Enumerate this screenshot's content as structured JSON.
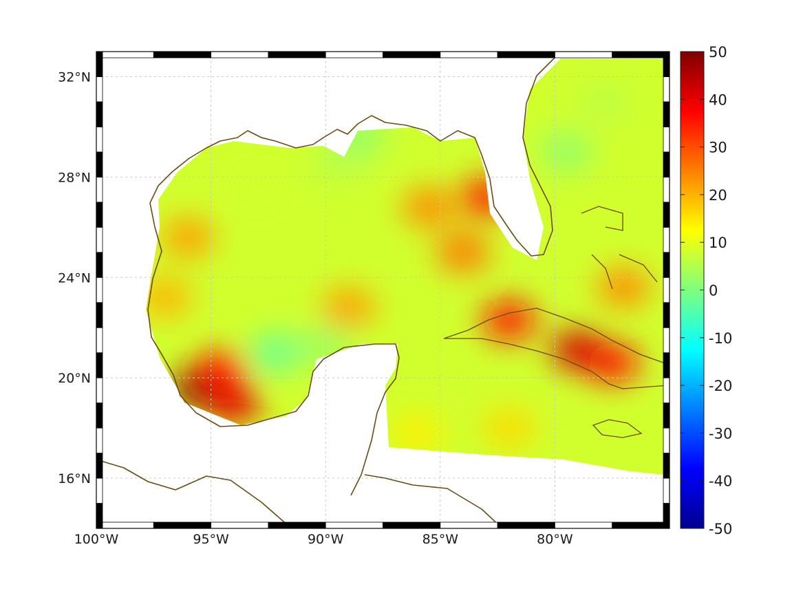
{
  "map": {
    "type": "heatmap",
    "projection": "lat-lon",
    "lon_range": [
      -100,
      -75
    ],
    "lat_range": [
      14,
      33
    ],
    "x_ticks": [
      {
        "value": -100,
        "label": "100°W"
      },
      {
        "value": -95,
        "label": "95°W"
      },
      {
        "value": -90,
        "label": "90°W"
      },
      {
        "value": -85,
        "label": "85°W"
      },
      {
        "value": -80,
        "label": "80°W"
      }
    ],
    "y_ticks": [
      {
        "value": 16,
        "label": "16°N"
      },
      {
        "value": 20,
        "label": "20°N"
      },
      {
        "value": 24,
        "label": "24°N"
      },
      {
        "value": 28,
        "label": "28°N"
      },
      {
        "value": 32,
        "label": "32°N"
      }
    ],
    "grid": true,
    "coastline_color": "#6b4a10",
    "frame_style": "alternating black/white border bars"
  },
  "colorbar": {
    "colormap": "jet",
    "range": [
      -50,
      50
    ],
    "placement": "right",
    "ticks": [
      {
        "value": 50,
        "label": "50"
      },
      {
        "value": 40,
        "label": "40"
      },
      {
        "value": 30,
        "label": "30"
      },
      {
        "value": 20,
        "label": "20"
      },
      {
        "value": 10,
        "label": "10"
      },
      {
        "value": 0,
        "label": "0"
      },
      {
        "value": -10,
        "label": "-10"
      },
      {
        "value": -20,
        "label": "-20"
      },
      {
        "value": -30,
        "label": "-30"
      },
      {
        "value": -40,
        "label": "-40"
      },
      {
        "value": -50,
        "label": "-50"
      }
    ]
  },
  "field": {
    "background_value": 8,
    "features": [
      {
        "lon": -95.5,
        "lat": 19.6,
        "value": 50
      },
      {
        "lon": -94.0,
        "lat": 19.0,
        "value": 40
      },
      {
        "lon": -94.6,
        "lat": 20.3,
        "value": 34
      },
      {
        "lon": -97.0,
        "lat": 23.2,
        "value": 20
      },
      {
        "lon": -96.0,
        "lat": 25.6,
        "value": 22
      },
      {
        "lon": -92.2,
        "lat": 21.0,
        "value": -2
      },
      {
        "lon": -90.0,
        "lat": 21.3,
        "value": 3
      },
      {
        "lon": -85.5,
        "lat": 26.8,
        "value": 24
      },
      {
        "lon": -84.0,
        "lat": 25.0,
        "value": 26
      },
      {
        "lon": -83.0,
        "lat": 27.2,
        "value": 34
      },
      {
        "lon": -82.0,
        "lat": 22.3,
        "value": 36
      },
      {
        "lon": -79.0,
        "lat": 21.1,
        "value": 42
      },
      {
        "lon": -77.5,
        "lat": 20.6,
        "value": 36
      },
      {
        "lon": -77.0,
        "lat": 23.6,
        "value": 24
      },
      {
        "lon": -79.5,
        "lat": 29.0,
        "value": 2
      },
      {
        "lon": -77.8,
        "lat": 31.0,
        "value": 6
      },
      {
        "lon": -89.0,
        "lat": 22.8,
        "value": 22
      },
      {
        "lon": -86.0,
        "lat": 17.8,
        "value": 14
      },
      {
        "lon": -82.0,
        "lat": 18.0,
        "value": 16
      },
      {
        "lon": -93.0,
        "lat": 27.5,
        "value": 8
      },
      {
        "lon": -89.5,
        "lat": 28.5,
        "value": 6
      },
      {
        "lon": -88.5,
        "lat": 29.6,
        "value": 2
      }
    ]
  }
}
